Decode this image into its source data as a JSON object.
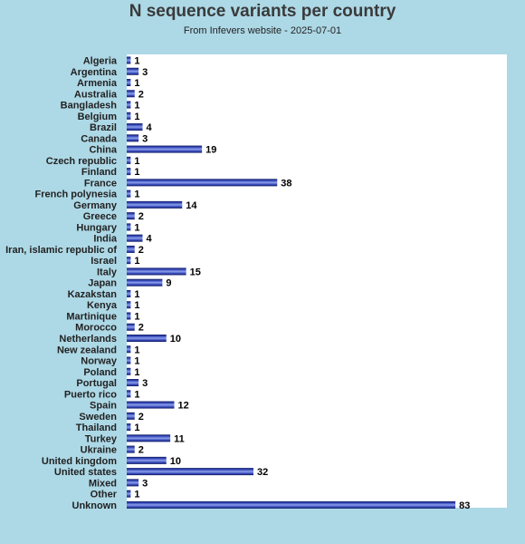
{
  "chart_data": {
    "type": "bar",
    "orientation": "horizontal",
    "title": "N sequence variants per country",
    "subtitle": "From Infevers website - 2025-07-01",
    "categories": [
      "Algeria",
      "Argentina",
      "Armenia",
      "Australia",
      "Bangladesh",
      "Belgium",
      "Brazil",
      "Canada",
      "China",
      "Czech republic",
      "Finland",
      "France",
      "French polynesia",
      "Germany",
      "Greece",
      "Hungary",
      "India",
      "Iran, islamic republic of",
      "Israel",
      "Italy",
      "Japan",
      "Kazakstan",
      "Kenya",
      "Martinique",
      "Morocco",
      "Netherlands",
      "New zealand",
      "Norway",
      "Poland",
      "Portugal",
      "Puerto rico",
      "Spain",
      "Sweden",
      "Thailand",
      "Turkey",
      "Ukraine",
      "United kingdom",
      "United states",
      "Mixed",
      "Other",
      "Unknown"
    ],
    "values": [
      1,
      3,
      1,
      2,
      1,
      1,
      4,
      3,
      19,
      1,
      1,
      38,
      1,
      14,
      2,
      1,
      4,
      2,
      1,
      15,
      9,
      1,
      1,
      1,
      2,
      10,
      1,
      1,
      1,
      3,
      1,
      12,
      2,
      1,
      11,
      2,
      10,
      32,
      3,
      1,
      83
    ],
    "xlim": [
      0,
      96
    ],
    "bar_color": "#1a2a8c",
    "plot_background": "#ffffff",
    "page_background": "#add8e6",
    "grid": false,
    "legend": false
  }
}
